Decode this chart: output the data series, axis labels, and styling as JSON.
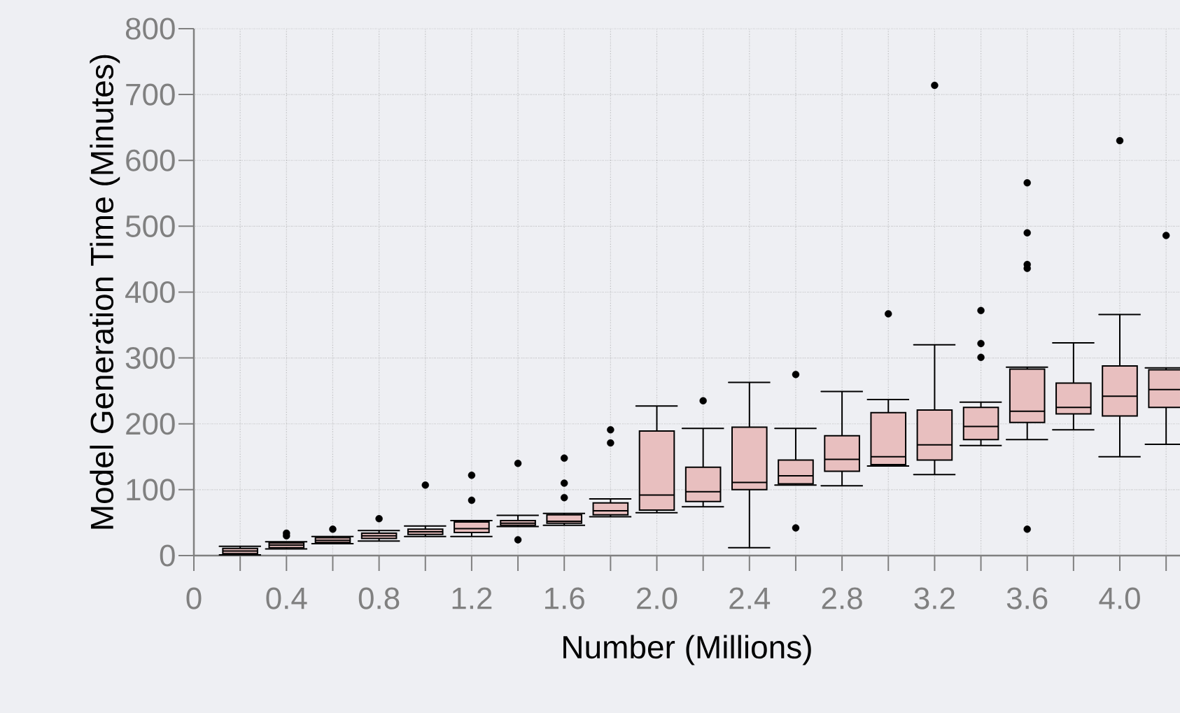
{
  "chart_data": {
    "type": "box",
    "xlabel": "Number (Millions)",
    "ylabel": "Model Generation Time (Minutes)",
    "color": "#e8bfbf",
    "grid": true,
    "xlim": [
      0,
      4.26
    ],
    "ylim": [
      0,
      800
    ],
    "xticks": [
      0,
      {
        "value": 0.2,
        "label": null
      },
      0.4,
      {
        "value": 0.6,
        "label": null
      },
      0.8,
      {
        "value": 1.0,
        "label": null
      },
      1.2,
      {
        "value": 1.4,
        "label": null
      },
      1.6,
      {
        "value": 1.8,
        "label": null
      },
      {
        "value": 2.0,
        "label": "2.0"
      },
      {
        "value": 2.2,
        "label": null
      },
      2.4,
      {
        "value": 2.6,
        "label": null
      },
      2.8,
      {
        "value": 3.0,
        "label": null
      },
      3.2,
      {
        "value": 3.4,
        "label": null
      },
      3.6,
      {
        "value": 3.8,
        "label": null
      },
      {
        "value": 4.0,
        "label": "4.0"
      },
      {
        "value": 4.2,
        "label": null
      }
    ],
    "yticks": [
      0,
      100,
      200,
      300,
      400,
      500,
      600,
      700,
      800
    ],
    "x": [
      0.2,
      0.4,
      0.6,
      0.8,
      1.0,
      1.2,
      1.4,
      1.6,
      1.8,
      2.0,
      2.2,
      2.4,
      2.6,
      2.8,
      3.0,
      3.2,
      3.4,
      3.6,
      3.8,
      4.0,
      4.2
    ],
    "boxes": [
      {
        "low": 1,
        "q1": 3,
        "median": 7,
        "q3": 11,
        "high": 14
      },
      {
        "low": 10,
        "q1": 12,
        "median": 16,
        "q3": 19,
        "high": 21,
        "outliers": [
          30,
          34
        ]
      },
      {
        "low": 18,
        "q1": 20,
        "median": 23,
        "q3": 27,
        "high": 29,
        "outliers": [
          40
        ]
      },
      {
        "low": 22,
        "q1": 26,
        "median": 30,
        "q3": 34,
        "high": 38,
        "outliers": [
          56
        ]
      },
      {
        "low": 29,
        "q1": 32,
        "median": 36,
        "q3": 40,
        "high": 45,
        "outliers": [
          107
        ]
      },
      {
        "low": 29,
        "q1": 35,
        "median": 41,
        "q3": 51,
        "high": 53,
        "outliers": [
          84,
          122
        ]
      },
      {
        "low": 44,
        "q1": 46,
        "median": 49,
        "q3": 53,
        "high": 61,
        "outliers": [
          24,
          140
        ]
      },
      {
        "low": 46,
        "q1": 49,
        "median": 52,
        "q3": 62,
        "high": 64,
        "outliers": [
          88,
          110,
          148
        ]
      },
      {
        "low": 59,
        "q1": 62,
        "median": 68,
        "q3": 80,
        "high": 86,
        "outliers": [
          171,
          191
        ]
      },
      {
        "low": 65,
        "q1": 69,
        "median": 92,
        "q3": 189,
        "high": 227
      },
      {
        "low": 74,
        "q1": 82,
        "median": 97,
        "q3": 134,
        "high": 193,
        "outliers": [
          235
        ]
      },
      {
        "low": 12,
        "q1": 100,
        "median": 111,
        "q3": 195,
        "high": 263
      },
      {
        "low": 107,
        "q1": 109,
        "median": 121,
        "q3": 145,
        "high": 193,
        "outliers": [
          42,
          275
        ]
      },
      {
        "low": 106,
        "q1": 128,
        "median": 146,
        "q3": 182,
        "high": 249
      },
      {
        "low": 136,
        "q1": 138,
        "median": 150,
        "q3": 217,
        "high": 237,
        "outliers": [
          367
        ]
      },
      {
        "low": 123,
        "q1": 145,
        "median": 168,
        "q3": 221,
        "high": 320,
        "outliers": [
          714
        ]
      },
      {
        "low": 167,
        "q1": 176,
        "median": 196,
        "q3": 225,
        "high": 233,
        "outliers": [
          301,
          322,
          372
        ]
      },
      {
        "low": 176,
        "q1": 202,
        "median": 219,
        "q3": 283,
        "high": 286,
        "outliers": [
          40,
          436,
          442,
          490,
          566
        ]
      },
      {
        "low": 191,
        "q1": 215,
        "median": 225,
        "q3": 262,
        "high": 323
      },
      {
        "low": 150,
        "q1": 212,
        "median": 242,
        "q3": 288,
        "high": 366,
        "outliers": [
          630
        ]
      },
      {
        "low": 169,
        "q1": 225,
        "median": 252,
        "q3": 282,
        "high": 285,
        "outliers": [
          486
        ]
      }
    ]
  }
}
